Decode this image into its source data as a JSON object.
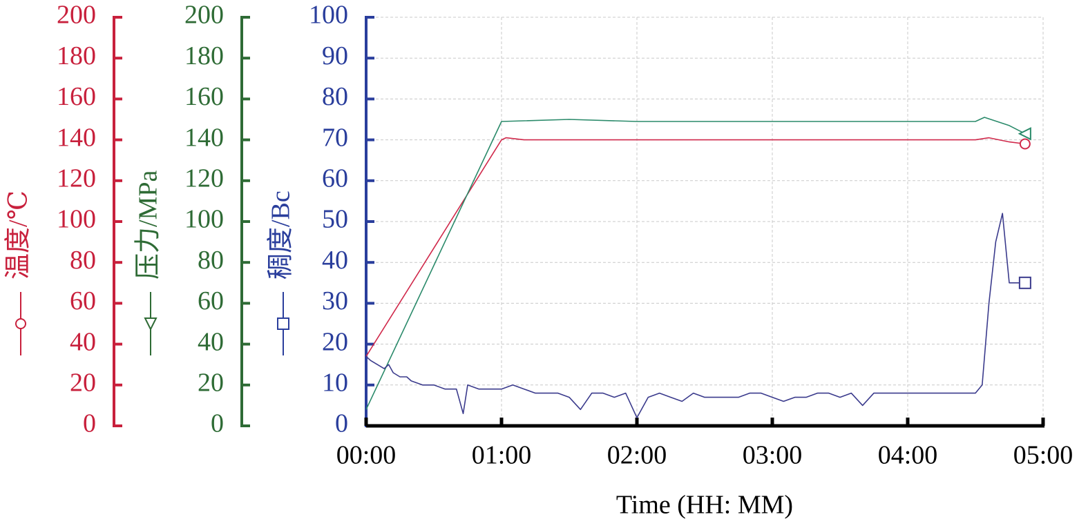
{
  "chart_data": {
    "type": "line",
    "x_label": "Time (HH: MM)",
    "xlim": [
      0,
      300
    ],
    "xticks": [
      {
        "value": 0,
        "label": "00:00"
      },
      {
        "value": 60,
        "label": "01:00"
      },
      {
        "value": 120,
        "label": "02:00"
      },
      {
        "value": 180,
        "label": "03:00"
      },
      {
        "value": 240,
        "label": "04:00"
      },
      {
        "value": 300,
        "label": "05:00"
      }
    ],
    "grid": true,
    "y_axes": [
      {
        "label": "温度/℃",
        "color": "#c8203c",
        "ylim": [
          0,
          200
        ],
        "yticks": [
          0,
          20,
          40,
          60,
          80,
          100,
          120,
          140,
          160,
          180,
          200
        ]
      },
      {
        "label": "压力/MPa",
        "color": "#2e6b35",
        "ylim": [
          0,
          200
        ],
        "yticks": [
          0,
          20,
          40,
          60,
          80,
          100,
          120,
          140,
          160,
          180,
          200
        ]
      },
      {
        "label": "稠度/Bc",
        "color": "#2a3e9c",
        "ylim": [
          0,
          100
        ],
        "yticks": [
          0,
          10,
          20,
          30,
          40,
          50,
          60,
          70,
          80,
          90,
          100
        ]
      }
    ],
    "series": [
      {
        "axis": 0,
        "color": "#d0284a",
        "marker": "circle",
        "x": [
          0,
          60,
          62,
          70,
          120,
          180,
          240,
          270,
          276,
          285,
          292
        ],
        "values": [
          34,
          140,
          141,
          140,
          140,
          140,
          140,
          140,
          141,
          139,
          138
        ]
      },
      {
        "axis": 1,
        "color": "#2a8a6a",
        "marker": "triangle",
        "x": [
          0,
          60,
          90,
          120,
          180,
          240,
          270,
          274,
          285,
          292
        ],
        "values": [
          8,
          149,
          150,
          149,
          149,
          149,
          149,
          151,
          147,
          143
        ]
      },
      {
        "axis": 2,
        "color": "#3a3a8c",
        "marker": "square",
        "x": [
          0,
          2,
          5,
          8,
          10,
          12,
          15,
          18,
          20,
          25,
          30,
          35,
          40,
          43,
          45,
          50,
          55,
          60,
          65,
          70,
          75,
          80,
          85,
          90,
          95,
          100,
          105,
          110,
          115,
          120,
          125,
          130,
          135,
          140,
          145,
          150,
          155,
          160,
          165,
          170,
          175,
          180,
          185,
          190,
          195,
          200,
          205,
          210,
          215,
          220,
          225,
          230,
          235,
          240,
          245,
          250,
          255,
          260,
          265,
          270,
          273,
          276,
          279,
          282,
          285,
          286,
          288,
          290,
          292
        ],
        "values": [
          17,
          16,
          15,
          14,
          15,
          13,
          12,
          12,
          11,
          10,
          10,
          9,
          9,
          3,
          10,
          9,
          9,
          9,
          10,
          9,
          8,
          8,
          8,
          7,
          4,
          8,
          8,
          7,
          8,
          2,
          7,
          8,
          7,
          6,
          8,
          7,
          7,
          7,
          7,
          8,
          8,
          7,
          6,
          7,
          7,
          8,
          8,
          7,
          8,
          5,
          8,
          8,
          8,
          8,
          8,
          8,
          8,
          8,
          8,
          8,
          10,
          30,
          45,
          52,
          35,
          35,
          35,
          35,
          35
        ]
      }
    ]
  }
}
